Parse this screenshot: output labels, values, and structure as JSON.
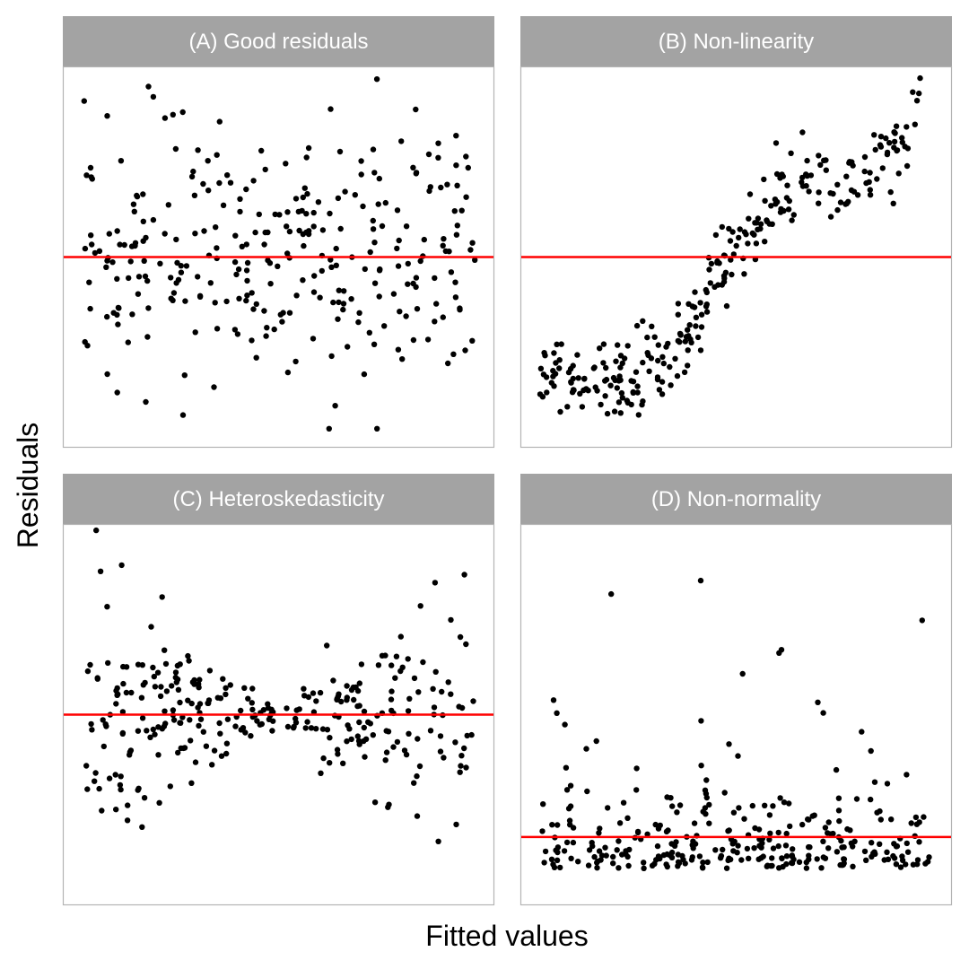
{
  "figure": {
    "xlabel": "Fitted values",
    "ylabel": "Residuals"
  },
  "colors": {
    "strip": "#a3a3a3",
    "strip_text": "#ffffff",
    "panel_border": "#b3b3b3",
    "points": "#000000",
    "reference_line": "#ff0000"
  },
  "chart_data": [
    {
      "type": "scatter",
      "panel": "A",
      "title": "(A) Good residuals",
      "xlabel": "Fitted values",
      "ylabel": "Residuals",
      "xlim": [
        0,
        1
      ],
      "ylim": [
        -3,
        3
      ],
      "grid": false,
      "hline": 0,
      "pattern": "good",
      "n_points": 300
    },
    {
      "type": "scatter",
      "panel": "B",
      "title": "(B) Non-linearity",
      "xlabel": "Fitted values",
      "ylabel": "Residuals",
      "xlim": [
        0,
        1
      ],
      "ylim": [
        -3,
        3
      ],
      "grid": false,
      "hline": 0,
      "pattern": "nonlinear",
      "n_points": 300
    },
    {
      "type": "scatter",
      "panel": "C",
      "title": "(C) Heteroskedasticity",
      "xlabel": "Fitted values",
      "ylabel": "Residuals",
      "xlim": [
        0,
        1
      ],
      "ylim": [
        -3,
        3
      ],
      "grid": false,
      "hline": 0,
      "pattern": "heteroskedastic",
      "n_points": 300
    },
    {
      "type": "scatter",
      "panel": "D",
      "title": "(D) Non-normality",
      "xlabel": "Fitted values",
      "ylabel": "Residuals",
      "xlim": [
        0,
        1
      ],
      "ylim": [
        -1.2,
        5.5
      ],
      "grid": false,
      "hline": 0,
      "pattern": "skewed",
      "n_points": 300
    }
  ]
}
